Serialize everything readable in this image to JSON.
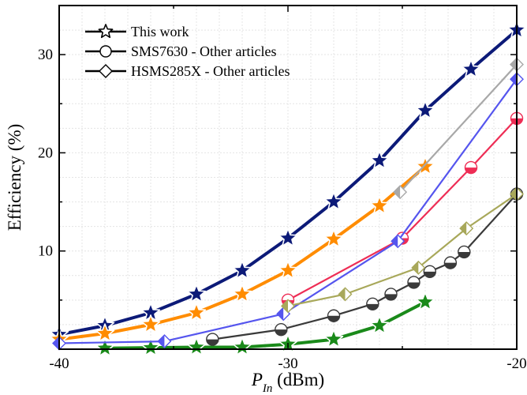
{
  "chart_data": {
    "type": "line",
    "xlabel_main": "P",
    "xlabel_sub": "In",
    "xlabel_unit": " (dBm)",
    "ylabel": "Efficiency (%)",
    "xlim": [
      -40,
      -20
    ],
    "ylim": [
      0,
      35
    ],
    "x_ticks": [
      -40,
      -30,
      -20
    ],
    "y_ticks": [
      10,
      20,
      30
    ],
    "grid": true,
    "legend_position": "top-left",
    "legend": [
      {
        "label": "This work",
        "marker": "star"
      },
      {
        "label": "SMS7630 - Other articles",
        "marker": "circle"
      },
      {
        "label": "HSMS285X - Other articles",
        "marker": "diamond"
      }
    ],
    "series": [
      {
        "group": "This work",
        "marker": "star",
        "color": "#0c1a78",
        "points": [
          [
            -40,
            1.5
          ],
          [
            -38,
            2.4
          ],
          [
            -36,
            3.7
          ],
          [
            -34,
            5.6
          ],
          [
            -32,
            8.0
          ],
          [
            -30,
            11.3
          ],
          [
            -28,
            15.0
          ],
          [
            -26,
            19.2
          ],
          [
            -24,
            24.3
          ],
          [
            -22,
            28.5
          ],
          [
            -20,
            32.5
          ]
        ]
      },
      {
        "group": "This work",
        "marker": "star",
        "color": "#ff8c00",
        "points": [
          [
            -40,
            1.0
          ],
          [
            -38,
            1.6
          ],
          [
            -36,
            2.5
          ],
          [
            -34,
            3.7
          ],
          [
            -32,
            5.6
          ],
          [
            -30,
            8.0
          ],
          [
            -28,
            11.2
          ],
          [
            -26,
            14.6
          ],
          [
            -24,
            18.6
          ]
        ]
      },
      {
        "group": "This work",
        "marker": "star",
        "color": "#1a8a1a",
        "points": [
          [
            -38,
            0.1
          ],
          [
            -36,
            0.15
          ],
          [
            -34,
            0.2
          ],
          [
            -32,
            0.2
          ],
          [
            -30,
            0.5
          ],
          [
            -28,
            1.0
          ],
          [
            -26,
            2.4
          ],
          [
            -24,
            4.8
          ]
        ]
      },
      {
        "group": "SMS7630 - Other articles",
        "marker": "circle",
        "color": "#3a3a3a",
        "points": [
          [
            -33.3,
            1.0
          ],
          [
            -30.3,
            2.0
          ],
          [
            -28,
            3.4
          ],
          [
            -26.3,
            4.6
          ],
          [
            -25.5,
            5.6
          ],
          [
            -24.5,
            6.8
          ],
          [
            -23.8,
            7.9
          ],
          [
            -22.9,
            8.8
          ],
          [
            -22.3,
            9.9
          ],
          [
            -20,
            15.8
          ]
        ]
      },
      {
        "group": "SMS7630 - Other articles",
        "marker": "circle",
        "color": "#ee2d55",
        "points": [
          [
            -30,
            5.0
          ],
          [
            -25,
            11.3
          ],
          [
            -22,
            18.5
          ],
          [
            -20,
            23.5
          ]
        ]
      },
      {
        "group": "HSMS285X - Other articles",
        "marker": "diamond",
        "color": "#5555ee",
        "points": [
          [
            -40,
            0.6
          ],
          [
            -35.4,
            0.8
          ],
          [
            -30.2,
            3.6
          ],
          [
            -25.2,
            11.0
          ],
          [
            -20,
            27.5
          ]
        ]
      },
      {
        "group": "HSMS285X - Other articles",
        "marker": "diamond",
        "color": "#a8a85a",
        "points": [
          [
            -30,
            4.4
          ],
          [
            -27.5,
            5.6
          ],
          [
            -24.3,
            8.3
          ],
          [
            -22.2,
            12.3
          ],
          [
            -20,
            15.8
          ]
        ]
      },
      {
        "group": "HSMS285X - Other articles",
        "marker": "diamond",
        "color": "#a8a8a8",
        "points": [
          [
            -25.1,
            16.0
          ],
          [
            -20,
            29.0
          ]
        ]
      }
    ]
  }
}
